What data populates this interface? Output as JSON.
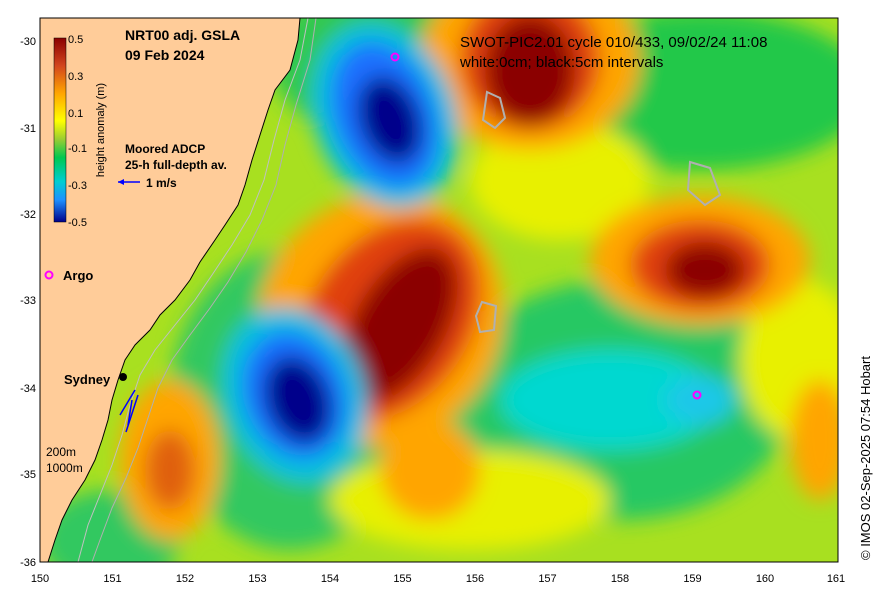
{
  "map": {
    "title_line1": "NRT00 adj. GSLA",
    "title_line2": "09 Feb 2024",
    "swot_line1": "SWOT-PIC2.01 cycle 010/433, 09/02/24 11:08",
    "swot_line2": "white:0cm; black:5cm intervals",
    "adcp_line1": "Moored ADCP",
    "adcp_line2": "25-h full-depth av.",
    "adcp_scale": "1 m/s",
    "argo_label": "Argo",
    "city_label": "Sydney",
    "depth_200": "200m",
    "depth_1000": "1000m",
    "credit": "© IMOS 02-Sep-2025 07:54 Hobart"
  },
  "colorbar": {
    "label": "height anomaly (m)",
    "ticks": [
      "0.5",
      "0.3",
      "0.1",
      "-0.1",
      "-0.3",
      "-0.5"
    ]
  },
  "axes": {
    "x_ticks": [
      "150",
      "151",
      "152",
      "153",
      "154",
      "155",
      "156",
      "157",
      "158",
      "159",
      "160",
      "161"
    ],
    "y_ticks": [
      "-30",
      "-31",
      "-32",
      "-33",
      "-34",
      "-35",
      "-36"
    ]
  },
  "colors": {
    "land": "#FFCC99",
    "deep_high": "#8B0000",
    "high": "#D2691E",
    "mid_high": "#FFA500",
    "zero": "#FFFF00",
    "mid_low": "#9ACD32",
    "low": "#00C850",
    "lower": "#00CED1",
    "deep_low": "#00008B",
    "argo_marker": "#FF00FF",
    "adcp_arrow": "#0000FF"
  }
}
